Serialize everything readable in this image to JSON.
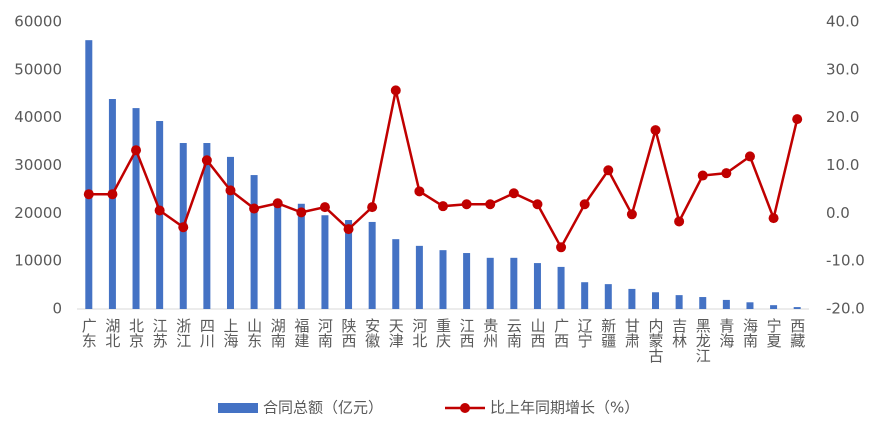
{
  "chart_data": {
    "type": "combo",
    "categories": [
      "广东",
      "湖北",
      "北京",
      "江苏",
      "浙江",
      "四川",
      "上海",
      "山东",
      "湖南",
      "福建",
      "河南",
      "陕西",
      "安徽",
      "天津",
      "河北",
      "重庆",
      "江西",
      "贵州",
      "云南",
      "山西",
      "广西",
      "辽宁",
      "新疆",
      "甘肃",
      "内蒙古",
      "吉林",
      "黑龙江",
      "青海",
      "海南",
      "宁夏",
      "西藏"
    ],
    "series": [
      {
        "name": "合同总额（亿元）",
        "type": "bar",
        "color": "#4472c4",
        "values": [
          56200,
          43900,
          42000,
          39300,
          34700,
          34700,
          31800,
          28000,
          22500,
          22000,
          19600,
          18600,
          18200,
          14600,
          13200,
          12300,
          11700,
          10700,
          10700,
          9600,
          8800,
          5600,
          5200,
          4200,
          3500,
          2900,
          2500,
          1900,
          1400,
          800,
          400
        ]
      },
      {
        "name": "比上年同期增长（%）",
        "type": "line",
        "axis": "y2",
        "color": "#c00000",
        "values": [
          4.0,
          4.0,
          13.2,
          0.6,
          -2.9,
          11.1,
          4.8,
          1.0,
          2.1,
          0.2,
          1.3,
          -3.3,
          1.3,
          25.7,
          4.6,
          1.5,
          1.9,
          1.9,
          4.2,
          1.9,
          -7.1,
          1.9,
          9.0,
          -0.2,
          17.4,
          -1.7,
          7.9,
          8.4,
          11.9,
          -1.0,
          19.7
        ]
      }
    ],
    "ylim": [
      0,
      60000
    ],
    "yticks": [
      0,
      10000,
      20000,
      30000,
      40000,
      50000,
      60000
    ],
    "y2lim": [
      -20,
      40
    ],
    "y2ticks": [
      {
        "value": -20,
        "label": "-20.0"
      },
      {
        "value": -10,
        "label": "-10.0"
      },
      {
        "value": 0,
        "label": "0.0"
      },
      {
        "value": 10,
        "label": "10.0"
      },
      {
        "value": 20,
        "label": "20.0"
      },
      {
        "value": 30,
        "label": "30.0"
      },
      {
        "value": 40,
        "label": "40.0"
      }
    ],
    "grid": false,
    "legend": "bottom"
  }
}
